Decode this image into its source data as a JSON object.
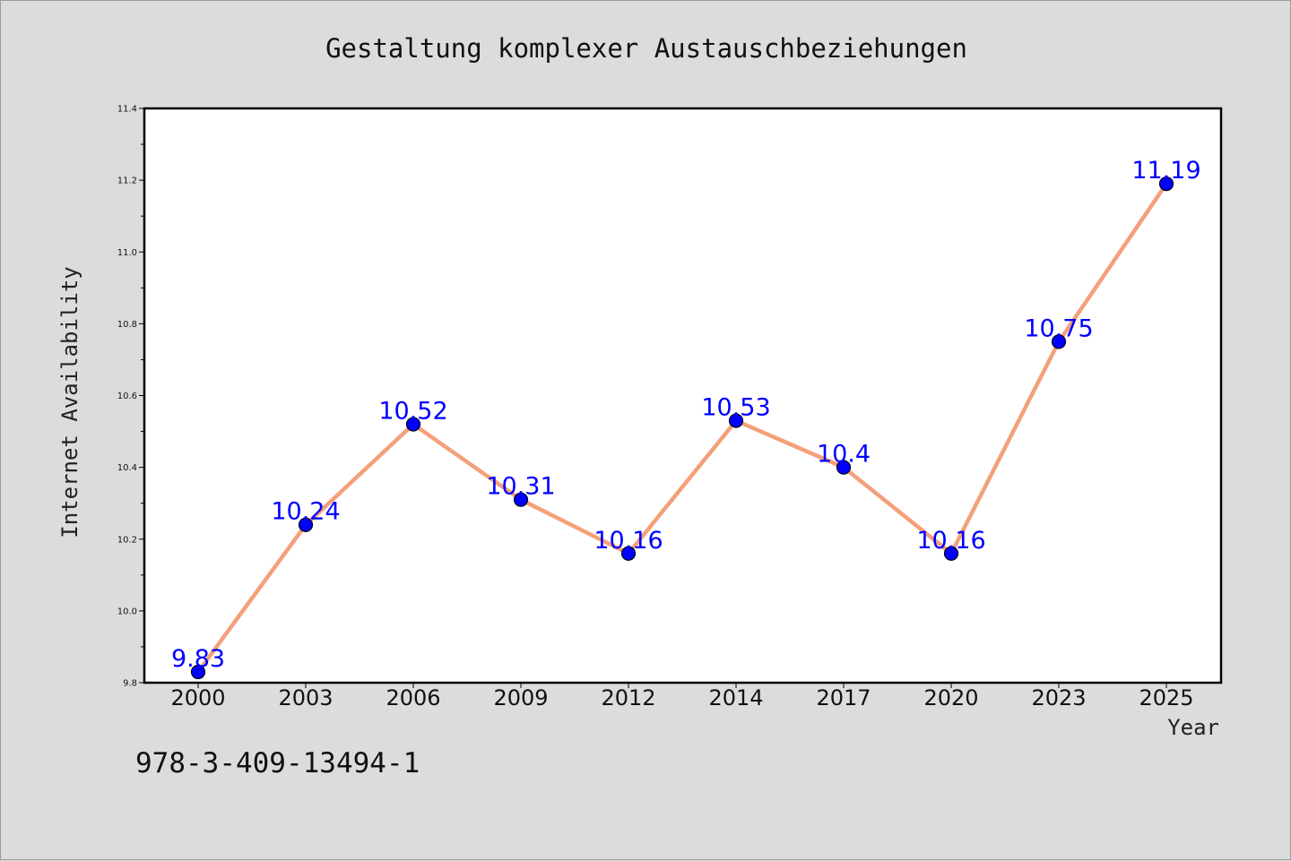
{
  "chart_data": {
    "type": "line",
    "title": "Gestaltung komplexer Austauschbeziehungen",
    "xlabel": "Year",
    "ylabel": "Internet Availability",
    "categories": [
      "2000",
      "2003",
      "2006",
      "2009",
      "2012",
      "2014",
      "2017",
      "2020",
      "2023",
      "2025"
    ],
    "series": [
      {
        "values": [
          9.83,
          10.24,
          10.52,
          10.31,
          10.16,
          10.53,
          10.4,
          10.16,
          10.75,
          11.19
        ],
        "labels": [
          "9.83",
          "10.24",
          "10.52",
          "10.31",
          "10.16",
          "10.53",
          "10.4",
          "10.16",
          "10.75",
          "11.19"
        ],
        "line_color": "#f4a07a",
        "marker_color": "#0000ff",
        "label_color": "#0000ff"
      }
    ],
    "ylim": [
      9.8,
      11.4
    ],
    "yticks": [
      "9.8",
      "10.0",
      "10.2",
      "10.4",
      "10.6",
      "10.8",
      "11.0",
      "11.2",
      "11.4"
    ],
    "grid": false,
    "legend": "none"
  },
  "footer": {
    "isbn": "978-3-409-13494-1"
  },
  "colors": {
    "background": "#dcdcdc",
    "plot_background": "#ffffff",
    "line": "#f4a07a",
    "marker": "#0000ff"
  }
}
